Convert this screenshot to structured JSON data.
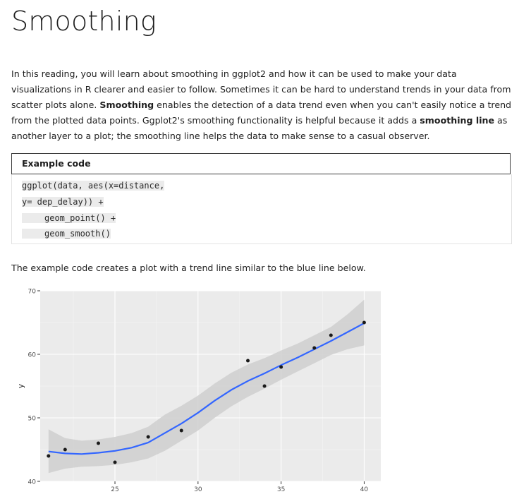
{
  "page": {
    "title": "Smoothing",
    "intro": {
      "p1": "In this reading, you will learn about smoothing in ggplot2 and how it can be used to make your data visualizations in R clearer and easier to follow. Sometimes it can be hard to understand trends in your data from scatter plots alone. ",
      "term1": "Smoothing",
      "p2": " enables the detection of a data trend even when you can't easily notice a trend from the plotted data points. Ggplot2's smoothing functionality is helpful because it adds a ",
      "term2": "smoothing line",
      "p3": " as another layer to a plot; the smoothing line helps the data to make sense to a casual observer."
    },
    "example": {
      "header": "Example code",
      "lines": [
        "ggplot(data, aes(x=distance,",
        "y= dep_delay)) +",
        "geom_point() +",
        "geom_smooth()"
      ]
    },
    "caption": "The example code creates a plot with a trend line similar to the blue line below."
  },
  "chart_data": {
    "type": "scatter",
    "title": "",
    "xlabel": "",
    "ylabel": "y",
    "xlim": [
      20.5,
      41
    ],
    "ylim": [
      40,
      70
    ],
    "x_ticks": [
      25,
      30,
      35,
      40
    ],
    "y_ticks": [
      40,
      50,
      60,
      70
    ],
    "grid": true,
    "panel_color": "#ebebeb",
    "smooth_color": "#3366ff",
    "band_color": "#cfcfcf",
    "point_color": "#1a1a1a",
    "points": [
      {
        "x": 21,
        "y": 44
      },
      {
        "x": 22,
        "y": 45
      },
      {
        "x": 24,
        "y": 46
      },
      {
        "x": 25,
        "y": 43
      },
      {
        "x": 27,
        "y": 47
      },
      {
        "x": 29,
        "y": 48
      },
      {
        "x": 33,
        "y": 59
      },
      {
        "x": 34,
        "y": 55
      },
      {
        "x": 35,
        "y": 58
      },
      {
        "x": 37,
        "y": 61
      },
      {
        "x": 38,
        "y": 63
      },
      {
        "x": 40,
        "y": 65
      }
    ],
    "smooth": [
      {
        "x": 21,
        "y": 44.7,
        "lo": 41.3,
        "hi": 48.2
      },
      {
        "x": 22,
        "y": 44.4,
        "lo": 42.0,
        "hi": 46.8
      },
      {
        "x": 23,
        "y": 44.3,
        "lo": 42.3,
        "hi": 46.4
      },
      {
        "x": 24,
        "y": 44.5,
        "lo": 42.4,
        "hi": 46.6
      },
      {
        "x": 25,
        "y": 44.8,
        "lo": 42.6,
        "hi": 47.0
      },
      {
        "x": 26,
        "y": 45.3,
        "lo": 43.0,
        "hi": 47.6
      },
      {
        "x": 27,
        "y": 46.1,
        "lo": 43.6,
        "hi": 48.6
      },
      {
        "x": 28,
        "y": 47.6,
        "lo": 44.8,
        "hi": 50.5
      },
      {
        "x": 29,
        "y": 49.1,
        "lo": 46.4,
        "hi": 51.9
      },
      {
        "x": 30,
        "y": 50.8,
        "lo": 48.0,
        "hi": 53.5
      },
      {
        "x": 31,
        "y": 52.7,
        "lo": 50.0,
        "hi": 55.4
      },
      {
        "x": 32,
        "y": 54.4,
        "lo": 51.8,
        "hi": 57.1
      },
      {
        "x": 33,
        "y": 55.8,
        "lo": 53.3,
        "hi": 58.4
      },
      {
        "x": 34,
        "y": 57.0,
        "lo": 54.6,
        "hi": 59.4
      },
      {
        "x": 35,
        "y": 58.3,
        "lo": 56.0,
        "hi": 60.6
      },
      {
        "x": 36,
        "y": 59.5,
        "lo": 57.3,
        "hi": 61.7
      },
      {
        "x": 37,
        "y": 60.8,
        "lo": 58.6,
        "hi": 63.0
      },
      {
        "x": 38,
        "y": 62.1,
        "lo": 59.9,
        "hi": 64.3
      },
      {
        "x": 39,
        "y": 63.5,
        "lo": 60.8,
        "hi": 66.3
      },
      {
        "x": 40,
        "y": 64.9,
        "lo": 61.4,
        "hi": 68.6
      }
    ]
  }
}
